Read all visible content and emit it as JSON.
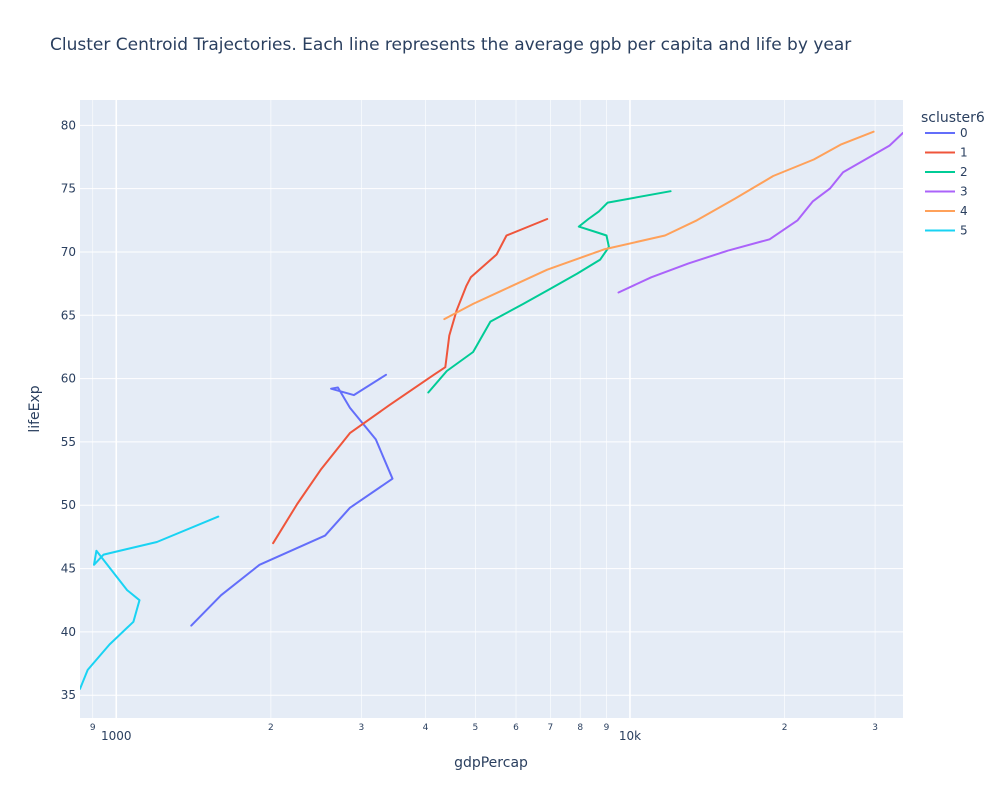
{
  "chart_data": {
    "type": "line",
    "title": "Cluster Centroid Trajectories. Each line represents the average gpb per capita and life by year",
    "xlabel": "gdpPercap",
    "ylabel": "lifeExp",
    "x_scale": "log",
    "xlim": [
      850,
      34000
    ],
    "ylim": [
      33.2,
      82
    ],
    "x_major_ticks": [
      {
        "value": 1000,
        "label": "1000"
      },
      {
        "value": 10000,
        "label": "10k"
      }
    ],
    "x_minor_ticks": [
      {
        "value": 900,
        "label": "9"
      },
      {
        "value": 2000,
        "label": "2"
      },
      {
        "value": 3000,
        "label": "3"
      },
      {
        "value": 4000,
        "label": "4"
      },
      {
        "value": 5000,
        "label": "5"
      },
      {
        "value": 6000,
        "label": "6"
      },
      {
        "value": 7000,
        "label": "7"
      },
      {
        "value": 8000,
        "label": "8"
      },
      {
        "value": 9000,
        "label": "9"
      },
      {
        "value": 20000,
        "label": "2"
      },
      {
        "value": 30000,
        "label": "3"
      }
    ],
    "y_ticks": [
      35,
      40,
      45,
      50,
      55,
      60,
      65,
      70,
      75,
      80
    ],
    "grid": true,
    "legend": {
      "title": "scluster6",
      "placement": "top-right"
    },
    "series": [
      {
        "name": "0",
        "color": "#636efa",
        "x": [
          1400,
          1600,
          1900,
          2550,
          2850,
          3450,
          3200,
          2850,
          2700,
          2620,
          2900,
          3350
        ],
        "y": [
          40.5,
          42.9,
          45.3,
          47.6,
          49.8,
          52.1,
          55.2,
          57.7,
          59.3,
          59.2,
          58.7,
          60.3
        ]
      },
      {
        "name": "1",
        "color": "#ef553b",
        "x": [
          2020,
          2250,
          2500,
          2850,
          3400,
          4150,
          4370,
          4450,
          4600,
          4800,
          4900,
          5500,
          5750,
          6900
        ],
        "y": [
          47.0,
          50.1,
          52.8,
          55.7,
          57.9,
          60.3,
          60.9,
          63.4,
          65.4,
          67.3,
          68.0,
          69.8,
          71.3,
          72.6
        ]
      },
      {
        "name": "2",
        "color": "#00cc96",
        "x": [
          4050,
          4400,
          4950,
          5350,
          6200,
          7000,
          7900,
          8750,
          9100,
          9000,
          8700,
          7950,
          8300,
          8700,
          9050,
          12000
        ],
        "y": [
          58.9,
          60.6,
          62.1,
          64.5,
          65.9,
          67.1,
          68.3,
          69.4,
          70.4,
          71.3,
          71.5,
          72.0,
          72.6,
          73.2,
          73.9,
          74.8
        ]
      },
      {
        "name": "3",
        "color": "#ab63fa",
        "x": [
          9500,
          11000,
          13000,
          15500,
          18700,
          21200,
          22700,
          24500,
          26000,
          29000,
          32000,
          34000
        ],
        "y": [
          66.8,
          68.0,
          69.1,
          70.1,
          71.0,
          72.5,
          74.0,
          75.0,
          76.3,
          77.4,
          78.4,
          79.4
        ]
      },
      {
        "name": "4",
        "color": "#ffa15a",
        "x": [
          4350,
          4950,
          5600,
          6900,
          8900,
          11700,
          13500,
          16000,
          19000,
          22800,
          25800,
          29800
        ],
        "y": [
          64.7,
          65.9,
          66.9,
          68.6,
          70.2,
          71.3,
          72.5,
          74.2,
          76.0,
          77.3,
          78.5,
          79.5
        ]
      },
      {
        "name": "5",
        "color": "#19d3f3",
        "x": [
          850,
          880,
          970,
          1080,
          1110,
          1050,
          915,
          905,
          945,
          1200,
          1580
        ],
        "y": [
          35.5,
          37.0,
          39.0,
          40.8,
          42.5,
          43.3,
          46.4,
          45.3,
          46.1,
          47.1,
          49.1
        ]
      }
    ]
  }
}
